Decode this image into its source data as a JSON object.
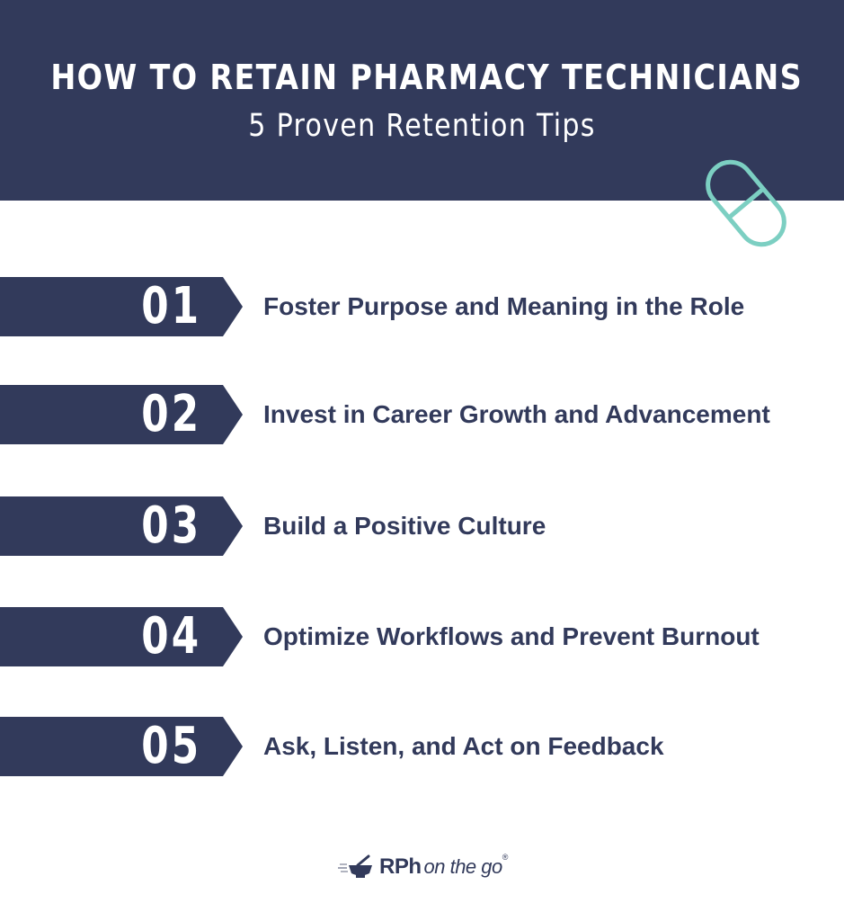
{
  "header": {
    "title": "HOW TO RETAIN PHARMACY TECHNICIANS",
    "subtitle": "5 Proven Retention Tips"
  },
  "tips": [
    {
      "number": "01",
      "label": "Foster Purpose and Meaning in the Role"
    },
    {
      "number": "02",
      "label": "Invest in Career Growth and Advancement"
    },
    {
      "number": "03",
      "label": "Build a Positive Culture"
    },
    {
      "number": "04",
      "label": "Optimize Workflows and Prevent Burnout"
    },
    {
      "number": "05",
      "label": "Ask, Listen, and Act on Feedback"
    }
  ],
  "logo": {
    "brand": "RPh",
    "tagline": "on the go",
    "registered": "®"
  },
  "colors": {
    "navy": "#323a5b",
    "teal": "#7ccfc2",
    "white": "#ffffff"
  },
  "icons": {
    "pill": "pill-capsule-icon",
    "mortar": "mortar-pestle-icon"
  }
}
